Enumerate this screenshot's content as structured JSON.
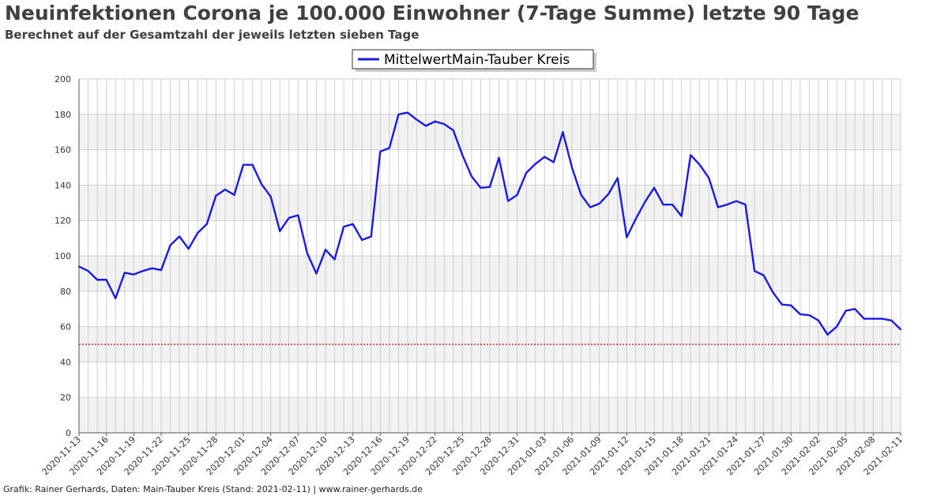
{
  "header": {
    "title": "Neuinfektionen Corona je 100.000 Einwohner (7-Tage Summe) letzte 90 Tage",
    "subtitle": "Berechnet auf der Gesamtzahl der jeweils letzten sieben Tage"
  },
  "footer": {
    "text": "Grafik: Rainer Gerhards, Daten: Main-Tauber Kreis (Stand: 2021-02-11) | www.rainer-gerhards.de"
  },
  "colors": {
    "series": "#1a1ae6",
    "threshold": "#cc0000",
    "band": "#f2f2f2",
    "grid": "#cfcfcf"
  },
  "chart_data": {
    "type": "line",
    "title": "Neuinfektionen Corona je 100.000 Einwohner (7-Tage Summe) letzte 90 Tage",
    "subtitle": "Berechnet auf der Gesamtzahl der jeweils letzten sieben Tage",
    "xlabel": "",
    "ylabel": "",
    "ylim": [
      0,
      200
    ],
    "yticks": [
      0,
      20,
      40,
      60,
      80,
      100,
      120,
      140,
      160,
      180,
      200
    ],
    "grid": true,
    "legend_position": "top-center",
    "x_start": "2020-11-13",
    "x_end": "2021-02-11",
    "xtick_labels": [
      "2020-11-13",
      "2020-11-16",
      "2020-11-19",
      "2020-11-22",
      "2020-11-25",
      "2020-11-28",
      "2020-12-01",
      "2020-12-04",
      "2020-12-07",
      "2020-12-10",
      "2020-12-13",
      "2020-12-16",
      "2020-12-19",
      "2020-12-22",
      "2020-12-25",
      "2020-12-28",
      "2020-12-31",
      "2021-01-03",
      "2021-01-06",
      "2021-01-09",
      "2021-01-12",
      "2021-01-15",
      "2021-01-18",
      "2021-01-21",
      "2021-01-24",
      "2021-01-27",
      "2021-01-30",
      "2021-02-02",
      "2021-02-05",
      "2021-02-08",
      "2021-02-11"
    ],
    "threshold": 50,
    "series": [
      {
        "name": "MittelwertMain-Tauber Kreis",
        "values": [
          94,
          91.5,
          86.5,
          86.5,
          76,
          90.5,
          89.5,
          91.5,
          93,
          92,
          106,
          111,
          104,
          113,
          118,
          134,
          137.5,
          134.5,
          151.5,
          151.5,
          140.5,
          133.5,
          114,
          121.5,
          123,
          101.5,
          90,
          103.5,
          98,
          116.5,
          118,
          109,
          111,
          159,
          161,
          180,
          181,
          177,
          173.5,
          176,
          174.5,
          171,
          157,
          145,
          138.5,
          139,
          155.5,
          131,
          134.5,
          147,
          152,
          156,
          153,
          170,
          150,
          134.5,
          127.5,
          129.5,
          135,
          144,
          110.5,
          121,
          130.5,
          138.5,
          129,
          129,
          122.5,
          157,
          151.5,
          144,
          127.5,
          129,
          131,
          129,
          91.5,
          89,
          79.5,
          72.5,
          72,
          67,
          66.5,
          63.5,
          55.5,
          60,
          69,
          70,
          64.5,
          64.5,
          64.5,
          63.5,
          58.5
        ]
      }
    ]
  }
}
